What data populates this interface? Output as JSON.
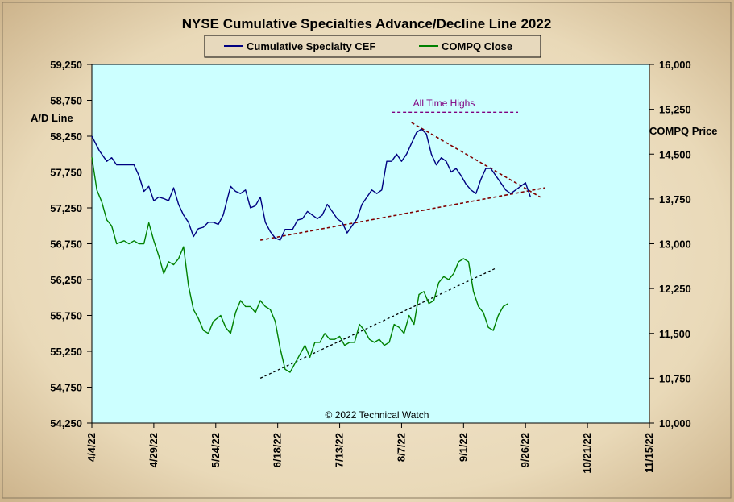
{
  "chart_data": {
    "type": "line",
    "title": "NYSE Cumulative Specialties Advance/Decline Line 2022",
    "ylabel_left": "A/D Line",
    "ylabel_right": "COMPQ Price",
    "ylim_left": [
      54250,
      59250
    ],
    "ylim_right": [
      10000,
      16000
    ],
    "y_left_ticks": [
      "59,250",
      "58,750",
      "58,250",
      "57,750",
      "57,250",
      "56,750",
      "56,250",
      "55,750",
      "55,250",
      "54,750",
      "54,250"
    ],
    "y_right_ticks": [
      "16,000",
      "15,250",
      "14,500",
      "13,750",
      "13,000",
      "12,250",
      "11,500",
      "10,750",
      "10,000"
    ],
    "x_tick_labels": [
      "4/4/22",
      "4/29/22",
      "5/24/22",
      "6/18/22",
      "7/13/22",
      "8/7/22",
      "9/1/22",
      "9/26/22",
      "10/21/22",
      "11/15/22"
    ],
    "x_start": "4/4/22",
    "x_step_days": 25,
    "x_range_days": [
      0,
      225
    ],
    "grid": false,
    "legend": {
      "position": "top",
      "entries": [
        "Cumulative Specialty CEF",
        "COMPQ Close"
      ]
    },
    "series": [
      {
        "name": "Cumulative Specialty CEF",
        "axis": "left",
        "color": "#000080",
        "x": [
          0,
          3,
          6,
          8,
          10,
          13,
          17,
          19,
          21,
          23,
          25,
          27,
          29,
          31,
          33,
          35,
          37,
          39,
          41,
          43,
          45,
          47,
          49,
          51,
          53,
          56,
          58,
          60,
          62,
          64,
          66,
          68,
          70,
          72,
          74,
          76,
          78,
          81,
          83,
          85,
          87,
          89,
          91,
          93,
          95,
          97,
          99,
          101,
          103,
          105,
          107,
          109,
          111,
          113,
          115,
          117,
          119,
          121,
          123,
          125,
          127,
          129,
          131,
          133,
          135,
          137,
          139,
          141,
          143,
          145,
          147,
          149,
          151,
          153,
          155,
          157,
          159,
          161,
          163,
          165,
          167,
          169,
          171,
          173,
          175,
          177
        ],
        "values": [
          58250,
          58050,
          57900,
          57950,
          57850,
          57850,
          57850,
          57700,
          57480,
          57550,
          57350,
          57400,
          57380,
          57350,
          57530,
          57300,
          57150,
          57050,
          56850,
          56960,
          56980,
          57050,
          57050,
          57020,
          57150,
          57550,
          57480,
          57450,
          57500,
          57250,
          57280,
          57400,
          57050,
          56920,
          56830,
          56800,
          56950,
          56950,
          57080,
          57100,
          57200,
          57150,
          57100,
          57150,
          57300,
          57200,
          57100,
          57050,
          56900,
          57000,
          57100,
          57300,
          57400,
          57500,
          57450,
          57500,
          57900,
          57900,
          58000,
          57900,
          58000,
          58150,
          58300,
          58350,
          58280,
          58000,
          57850,
          57950,
          57900,
          57750,
          57800,
          57700,
          57580,
          57500,
          57450,
          57650,
          57800,
          57800,
          57700,
          57600,
          57500,
          57450,
          57500,
          57550,
          57600,
          57400
        ],
        "trendlines": [
          {
            "style": "dashed",
            "color": "#800000",
            "x": [
              68,
              183
            ],
            "values": [
              56800,
              57530
            ]
          },
          {
            "style": "dashed",
            "color": "#800000",
            "x": [
              129,
              181
            ],
            "values": [
              58440,
              57400
            ]
          }
        ]
      },
      {
        "name": "COMPQ Close",
        "axis": "right",
        "color": "#008000",
        "x": [
          0,
          2,
          4,
          6,
          8,
          10,
          13,
          15,
          17,
          19,
          21,
          23,
          25,
          27,
          29,
          31,
          33,
          35,
          37,
          39,
          41,
          43,
          45,
          47,
          49,
          52,
          54,
          56,
          58,
          60,
          62,
          64,
          66,
          68,
          70,
          72,
          74,
          76,
          78,
          80,
          82,
          84,
          86,
          88,
          90,
          92,
          94,
          96,
          98,
          100,
          102,
          104,
          106,
          108,
          110,
          112,
          114,
          116,
          118,
          120,
          122,
          124,
          126,
          128,
          130,
          132,
          134,
          136,
          138,
          140,
          142,
          144,
          146,
          148,
          150,
          152,
          154,
          156,
          158,
          160,
          162,
          164,
          166,
          168
        ],
        "values": [
          14450,
          13900,
          13700,
          13400,
          13300,
          13000,
          13050,
          13000,
          13050,
          13000,
          13000,
          13350,
          13050,
          12800,
          12500,
          12700,
          12650,
          12750,
          12950,
          12300,
          11900,
          11750,
          11550,
          11500,
          11700,
          11800,
          11600,
          11500,
          11850,
          12050,
          11950,
          11950,
          11850,
          12050,
          11950,
          11900,
          11700,
          11250,
          10900,
          10850,
          11000,
          11150,
          11300,
          11100,
          11350,
          11350,
          11500,
          11400,
          11400,
          11450,
          11300,
          11350,
          11350,
          11650,
          11550,
          11400,
          11350,
          11400,
          11300,
          11350,
          11650,
          11600,
          11500,
          11800,
          11650,
          12150,
          12200,
          12000,
          12050,
          12350,
          12450,
          12400,
          12500,
          12700,
          12750,
          12700,
          12200,
          11950,
          11850,
          11600,
          11550,
          11800,
          11950,
          12000
        ],
        "trendlines": [
          {
            "style": "dashed",
            "color": "#000000",
            "x": [
              68,
              163
            ],
            "values": [
              10750,
              12590
            ]
          }
        ]
      }
    ],
    "annotations": [
      {
        "text": "All Time Highs",
        "color": "#800080",
        "x_range": [
          121,
          172
        ],
        "value": 15200,
        "axis": "right"
      }
    ],
    "watermark": "© 2022 Technical Watch"
  }
}
